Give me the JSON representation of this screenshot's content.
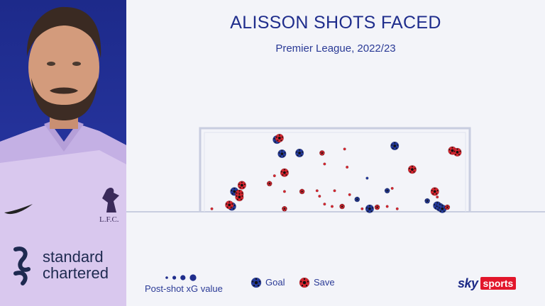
{
  "brand": {
    "sky": "sky",
    "sports": "sports"
  },
  "shirt": {
    "sponsor_line1": "standard",
    "sponsor_line2": "chartered",
    "club": "L.F.C."
  },
  "colors": {
    "goal": "#243a9c",
    "save": "#d6252f",
    "accent": "#1f2d8c",
    "background": "#f3f4f9"
  },
  "legend": {
    "size_label": "Post-shot xG value",
    "goal_label": "Goal",
    "save_label": "Save"
  },
  "chart_data": {
    "type": "scatter",
    "title": "ALISSON SHOTS FACED",
    "subtitle": "Premier League, 2022/23",
    "xlim": [
      0,
      100
    ],
    "ylim": [
      0,
      100
    ],
    "series": [
      {
        "name": "Goal",
        "points": [
          {
            "x": 27,
            "y": 90,
            "s": 3
          },
          {
            "x": 29,
            "y": 72,
            "s": 3
          },
          {
            "x": 36,
            "y": 73,
            "s": 3
          },
          {
            "x": 74,
            "y": 82,
            "s": 3
          },
          {
            "x": 10,
            "y": 24,
            "s": 3
          },
          {
            "x": 59,
            "y": 14,
            "s": 2
          },
          {
            "x": 63,
            "y": 41,
            "s": 1
          },
          {
            "x": 71,
            "y": 25,
            "s": 2
          },
          {
            "x": 64,
            "y": 2,
            "s": 3
          },
          {
            "x": 87,
            "y": 12,
            "s": 2
          },
          {
            "x": 9,
            "y": 5,
            "s": 3
          },
          {
            "x": 91,
            "y": 6,
            "s": 3
          },
          {
            "x": 92,
            "y": 4,
            "s": 3
          },
          {
            "x": 93,
            "y": 2,
            "s": 3
          }
        ]
      },
      {
        "name": "Save",
        "points": [
          {
            "x": 28,
            "y": 92,
            "s": 3
          },
          {
            "x": 45,
            "y": 73,
            "s": 2
          },
          {
            "x": 97,
            "y": 76,
            "s": 3
          },
          {
            "x": 99,
            "y": 74,
            "s": 3
          },
          {
            "x": 30,
            "y": 48,
            "s": 3
          },
          {
            "x": 26,
            "y": 44,
            "s": 1
          },
          {
            "x": 13,
            "y": 32,
            "s": 3
          },
          {
            "x": 24,
            "y": 34,
            "s": 2
          },
          {
            "x": 30,
            "y": 24,
            "s": 1
          },
          {
            "x": 37,
            "y": 24,
            "s": 2
          },
          {
            "x": 12,
            "y": 21,
            "s": 3
          },
          {
            "x": 12,
            "y": 17,
            "s": 3
          },
          {
            "x": 8,
            "y": 7,
            "s": 3
          },
          {
            "x": 1,
            "y": 2,
            "s": 1
          },
          {
            "x": 30,
            "y": 2,
            "s": 2
          },
          {
            "x": 43,
            "y": 25,
            "s": 1
          },
          {
            "x": 50,
            "y": 25,
            "s": 1
          },
          {
            "x": 46,
            "y": 8,
            "s": 1
          },
          {
            "x": 49,
            "y": 5,
            "s": 1
          },
          {
            "x": 53,
            "y": 5,
            "s": 2
          },
          {
            "x": 67,
            "y": 4,
            "s": 2
          },
          {
            "x": 71,
            "y": 5,
            "s": 1
          },
          {
            "x": 75,
            "y": 2,
            "s": 1
          },
          {
            "x": 81,
            "y": 52,
            "s": 3
          },
          {
            "x": 73,
            "y": 28,
            "s": 1
          },
          {
            "x": 90,
            "y": 24,
            "s": 3
          },
          {
            "x": 91,
            "y": 17,
            "s": 1
          },
          {
            "x": 95,
            "y": 4,
            "s": 2
          },
          {
            "x": 54,
            "y": 78,
            "s": 1
          },
          {
            "x": 46,
            "y": 59,
            "s": 1
          },
          {
            "x": 55,
            "y": 55,
            "s": 1
          },
          {
            "x": 56,
            "y": 20,
            "s": 1
          },
          {
            "x": 61,
            "y": 2,
            "s": 1
          },
          {
            "x": 44,
            "y": 18,
            "s": 1
          }
        ]
      }
    ],
    "size_legend_levels": [
      1,
      2,
      3,
      4
    ]
  }
}
